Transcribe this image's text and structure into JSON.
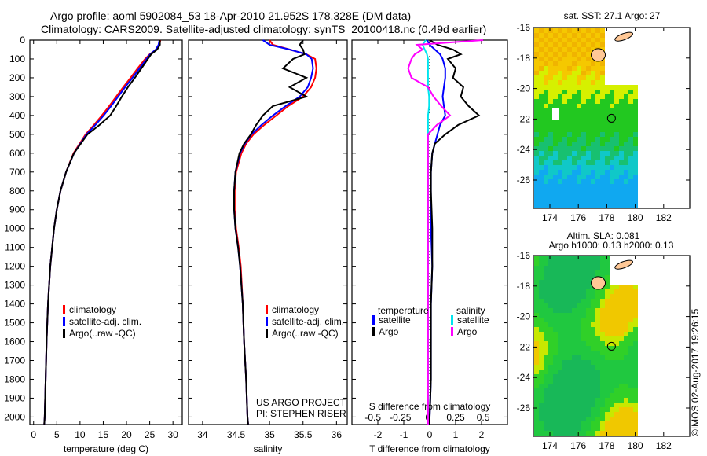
{
  "header": {
    "title_line1": "Argo profile: aoml 5902084_53 18-Apr-2010 21.952S 178.328E (DM data)",
    "title_line2": "Climatology: CARS2009. Satellite-adjusted climatology: synTS_20100418.nc (0.49d earlier)"
  },
  "colors": {
    "climatology": "#ff0000",
    "satellite": "#0000ff",
    "argo": "#000000",
    "s_satellite": "#00e5ee",
    "s_argo": "#ff00ff"
  },
  "chart_data": [
    {
      "type": "line",
      "xlabel": "temperature (deg C)",
      "ylabel": "",
      "xlim": [
        -0.8,
        32
      ],
      "ylim": [
        2040,
        0
      ],
      "xticks": [
        0,
        5,
        10,
        15,
        20,
        25,
        30
      ],
      "yticks": [
        0,
        100,
        200,
        300,
        400,
        500,
        600,
        700,
        800,
        900,
        1000,
        1100,
        1200,
        1300,
        1400,
        1500,
        1600,
        1700,
        1800,
        1900,
        2000
      ],
      "depth": [
        0,
        25,
        50,
        75,
        100,
        150,
        200,
        250,
        300,
        350,
        400,
        450,
        500,
        600,
        700,
        800,
        900,
        1000,
        1200,
        1400,
        1600,
        1800,
        2000,
        2040
      ],
      "series": [
        {
          "name": "climatology",
          "color": "#ff0000",
          "values": [
            27.3,
            27.1,
            26.4,
            25.0,
            24.0,
            22.4,
            20.9,
            19.3,
            17.8,
            16.3,
            14.7,
            13.0,
            11.2,
            8.6,
            7.0,
            5.8,
            5.0,
            4.4,
            3.6,
            3.1,
            2.8,
            2.6,
            2.4,
            2.3
          ]
        },
        {
          "name": "satellite-adj. clim.",
          "color": "#0000ff",
          "values": [
            27.1,
            26.9,
            26.3,
            25.1,
            24.3,
            22.8,
            21.3,
            19.7,
            18.2,
            16.7,
            15.1,
            13.3,
            11.4,
            8.7,
            7.0,
            5.8,
            5.0,
            4.4,
            3.6,
            3.1,
            2.8,
            2.6,
            2.4,
            2.3
          ]
        },
        {
          "name": "Argo(..raw -QC)",
          "color": "#000000",
          "values": [
            27.2,
            27.2,
            26.6,
            25.3,
            24.6,
            23.2,
            21.8,
            20.3,
            19.0,
            17.8,
            16.5,
            14.2,
            11.6,
            8.7,
            7.0,
            5.8,
            5.0,
            4.4,
            3.6,
            3.1,
            2.8,
            2.6,
            2.4,
            2.3
          ]
        }
      ],
      "legend": [
        "climatology",
        "satellite-adj. clim.",
        "Argo(..raw -QC)"
      ],
      "legend_position": "bottom-center"
    },
    {
      "type": "line",
      "xlabel": "salinity",
      "ylabel": "",
      "xlim": [
        33.79,
        36.16
      ],
      "ylim": [
        2040,
        0
      ],
      "xticks": [
        34,
        34.5,
        35,
        35.5,
        36
      ],
      "depth": [
        0,
        25,
        50,
        75,
        100,
        150,
        200,
        250,
        300,
        350,
        400,
        450,
        500,
        550,
        600,
        700,
        800,
        900,
        1000,
        1100,
        1200,
        1400,
        1600,
        1800,
        2000,
        2040
      ],
      "series": [
        {
          "name": "climatology",
          "color": "#ff0000",
          "values": [
            35.0,
            35.05,
            35.3,
            35.55,
            35.68,
            35.7,
            35.68,
            35.62,
            35.5,
            35.28,
            35.1,
            34.92,
            34.76,
            34.65,
            34.58,
            34.5,
            34.48,
            34.48,
            34.5,
            34.54,
            34.57,
            34.6,
            34.62,
            34.65,
            34.67,
            34.68
          ]
        },
        {
          "name": "satellite-adj. clim.",
          "color": "#0000ff",
          "values": [
            34.9,
            35.0,
            35.3,
            35.55,
            35.63,
            35.65,
            35.62,
            35.57,
            35.45,
            35.24,
            35.05,
            34.88,
            34.73,
            34.63,
            34.56,
            34.49,
            34.47,
            34.47,
            34.49,
            34.53,
            34.56,
            34.6,
            34.62,
            34.65,
            34.67,
            34.68
          ]
        },
        {
          "name": "Argo(..raw -QC)",
          "color": "#000000",
          "values": [
            35.5,
            35.45,
            35.5,
            35.52,
            35.35,
            35.2,
            35.55,
            35.3,
            35.55,
            35.05,
            34.9,
            34.8,
            34.72,
            34.62,
            34.55,
            34.49,
            34.47,
            34.47,
            34.49,
            34.53,
            34.56,
            34.6,
            34.62,
            34.65,
            34.67,
            34.68
          ]
        }
      ],
      "legend": [
        "climatology",
        "satellite-adj. clim.",
        "Argo(..raw -QC)"
      ],
      "legend_position": "bottom-center",
      "annotation": [
        "US ARGO PROJECT",
        "PI: STEPHEN RISER"
      ]
    },
    {
      "type": "line",
      "xlabel": "T difference from climatology",
      "x2label": "S difference from climatology",
      "xlim": [
        -3.0,
        3.0
      ],
      "x2lim": [
        -0.69,
        0.72
      ],
      "ylim": [
        2040,
        0
      ],
      "xticks": [
        -2,
        -1,
        0,
        1,
        2
      ],
      "x2ticks": [
        "-0.5",
        "-0.25",
        "0",
        "0.25",
        "0.5"
      ],
      "depth": [
        0,
        25,
        50,
        75,
        100,
        150,
        200,
        250,
        300,
        350,
        400,
        450,
        500,
        550,
        600,
        700,
        800,
        1000,
        1200,
        1400,
        1600,
        1800,
        2000,
        2040
      ],
      "series": [
        {
          "name": "temperature satellite",
          "axis": "T",
          "color": "#0000ff",
          "values": [
            -0.1,
            0.0,
            0.2,
            0.4,
            0.5,
            0.6,
            0.6,
            0.55,
            0.5,
            0.55,
            0.6,
            0.4,
            0.3,
            0.2,
            0.1,
            0.05,
            0.05,
            0.05,
            0.1,
            0.05,
            0.05,
            0.05,
            0.0,
            0.0
          ]
        },
        {
          "name": "temperature Argo",
          "axis": "T",
          "color": "#000000",
          "values": [
            0.0,
            0.3,
            0.9,
            1.2,
            0.7,
            1.0,
            0.9,
            1.3,
            1.2,
            1.5,
            1.9,
            1.1,
            0.6,
            0.2,
            0.1,
            0.05,
            0.05,
            0.1,
            0.1,
            0.05,
            0.05,
            0.05,
            0.0,
            0.0
          ]
        },
        {
          "name": "salinity satellite",
          "axis": "S",
          "color": "#00e5ee",
          "values": [
            -0.02,
            -0.05,
            -0.03,
            -0.01,
            0.0,
            0.0,
            0.0,
            0.0,
            0.01,
            0.01,
            0.0,
            0.0,
            0.0,
            0.0,
            0.0,
            0.0,
            0.0,
            0.0,
            0.0,
            0.0,
            0.0,
            0.0,
            0.0,
            0.0
          ]
        },
        {
          "name": "salinity Argo",
          "axis": "S",
          "color": "#ff00ff",
          "values": [
            0.5,
            -0.1,
            -0.05,
            -0.12,
            -0.15,
            -0.18,
            -0.15,
            0.0,
            0.05,
            0.12,
            0.2,
            0.08,
            0.0,
            0.0,
            0.0,
            0.0,
            0.0,
            0.0,
            0.0,
            0.0,
            0.0,
            0.0,
            0.0,
            0.0
          ]
        }
      ],
      "legend_headers": [
        "temperature",
        "salinity"
      ],
      "legend": [
        "satellite",
        "Argo",
        "satellite",
        "Argo"
      ],
      "legend_position": "bottom-center"
    }
  ],
  "maps": [
    {
      "title": "sat. SST: 27.1 Argo: 27",
      "yticks": [
        "-16",
        "-18",
        "-20",
        "-22",
        "-24",
        "-26"
      ],
      "xticks": [
        "174",
        "176",
        "178",
        "180",
        "182"
      ]
    },
    {
      "title_line1": "Altim. SLA: 0.081",
      "title_line2": "Argo h1000: 0.13 h2000: 0.13",
      "yticks": [
        "-16",
        "-18",
        "-20",
        "-22",
        "-24",
        "-26"
      ],
      "xticks": [
        "174",
        "176",
        "178",
        "180",
        "182"
      ]
    }
  ],
  "footer": {
    "credit": "©IMOS 02-Aug-2017 19:26:15"
  }
}
